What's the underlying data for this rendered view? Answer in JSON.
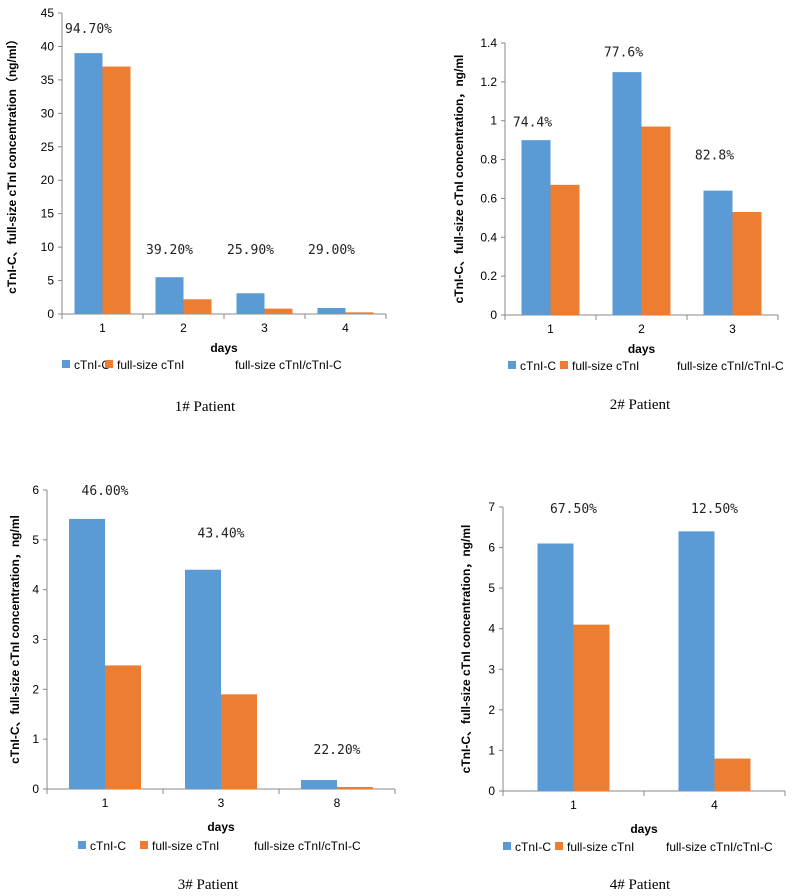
{
  "colors": {
    "series1": "#5B9BD5",
    "series2": "#ED7D31",
    "axis": "#888888"
  },
  "legend_labels": [
    "cTnI-C",
    "full-size cTnI",
    "full-size cTnI/cTnI-C"
  ],
  "chart_data": [
    {
      "type": "bar",
      "title": "1# Patient",
      "xlabel": "days",
      "ylabel": "cTnI-C、full-size cTnI concentration（ng/ml）",
      "categories": [
        "1",
        "2",
        "3",
        "4"
      ],
      "series": [
        {
          "name": "cTnI-C",
          "values": [
            39,
            5.5,
            3.1,
            0.9
          ]
        },
        {
          "name": "full-size cTnI",
          "values": [
            37,
            2.2,
            0.8,
            0.25
          ]
        }
      ],
      "ratio_labels": [
        "94.70%",
        "39.20%",
        "25.90%",
        "29.00%"
      ],
      "ratio_label_values": [
        42,
        9,
        9,
        9
      ],
      "ylim": [
        0,
        45
      ],
      "yticks": [
        "0",
        "5",
        "10",
        "15",
        "20",
        "25",
        "30",
        "35",
        "40",
        "45"
      ],
      "ytick_values": [
        0,
        5,
        10,
        15,
        20,
        25,
        30,
        35,
        40,
        45
      ],
      "legend": [
        "cTnI-C",
        "full-size cTnI",
        "full-size cTnI/cTnI-C"
      ]
    },
    {
      "type": "bar",
      "title": "2# Patient",
      "xlabel": "days",
      "ylabel": "cTnI-C、full-size cTnI concentration，ng/ml",
      "categories": [
        "1",
        "2",
        "3"
      ],
      "series": [
        {
          "name": "cTnI-C",
          "values": [
            0.9,
            1.25,
            0.64
          ]
        },
        {
          "name": "full-size cTnI",
          "values": [
            0.67,
            0.97,
            0.53
          ]
        }
      ],
      "ratio_labels": [
        "74.4%",
        "77.6%",
        "82.8%"
      ],
      "ratio_label_values": [
        0.97,
        1.33,
        0.8
      ],
      "ylim": [
        0,
        1.4
      ],
      "yticks": [
        "0",
        "0.2",
        "0.4",
        "0.6",
        "0.8",
        "1",
        "1.2",
        "1.4"
      ],
      "ytick_values": [
        0,
        0.2,
        0.4,
        0.6,
        0.8,
        1,
        1.2,
        1.4
      ],
      "legend": [
        "cTnI-C",
        "full-size cTnI",
        "full-size cTnI/cTnI-C"
      ]
    },
    {
      "type": "bar",
      "title": "3# Patient",
      "xlabel": "days",
      "ylabel": "cTnI-C、full-size cTnI concentration，ng/ml",
      "categories": [
        "1",
        "3",
        "8"
      ],
      "series": [
        {
          "name": "cTnI-C",
          "values": [
            5.42,
            4.4,
            0.18
          ]
        },
        {
          "name": "full-size cTnI",
          "values": [
            2.48,
            1.9,
            0.04
          ]
        }
      ],
      "ratio_labels": [
        "46.00%",
        "43.40%",
        "22.20%"
      ],
      "ratio_label_values": [
        5.9,
        5.05,
        0.7
      ],
      "ylim": [
        0,
        6
      ],
      "yticks": [
        "0",
        "1",
        "2",
        "3",
        "4",
        "5",
        "6"
      ],
      "ytick_values": [
        0,
        1,
        2,
        3,
        4,
        5,
        6
      ],
      "legend": [
        "cTnI-C",
        "full-size cTnI",
        "full-size cTnI/cTnI-C"
      ]
    },
    {
      "type": "bar",
      "title": "4# Patient",
      "xlabel": "days",
      "ylabel": "cTnI-C、full-size cTnI concentration，ng/ml",
      "categories": [
        "1",
        "4"
      ],
      "series": [
        {
          "name": "cTnI-C",
          "values": [
            6.1,
            6.4
          ]
        },
        {
          "name": "full-size cTnI",
          "values": [
            4.1,
            0.8
          ]
        }
      ],
      "ratio_labels": [
        "67.50%",
        "12.50%"
      ],
      "ratio_label_values": [
        6.85,
        6.85
      ],
      "ylim": [
        0,
        7
      ],
      "yticks": [
        "0",
        "1",
        "2",
        "3",
        "4",
        "5",
        "6",
        "7"
      ],
      "ytick_values": [
        0,
        1,
        2,
        3,
        4,
        5,
        6,
        7
      ],
      "legend": [
        "cTnI-C",
        "full-size cTnI",
        "full-size cTnI/cTnI-C"
      ]
    }
  ]
}
